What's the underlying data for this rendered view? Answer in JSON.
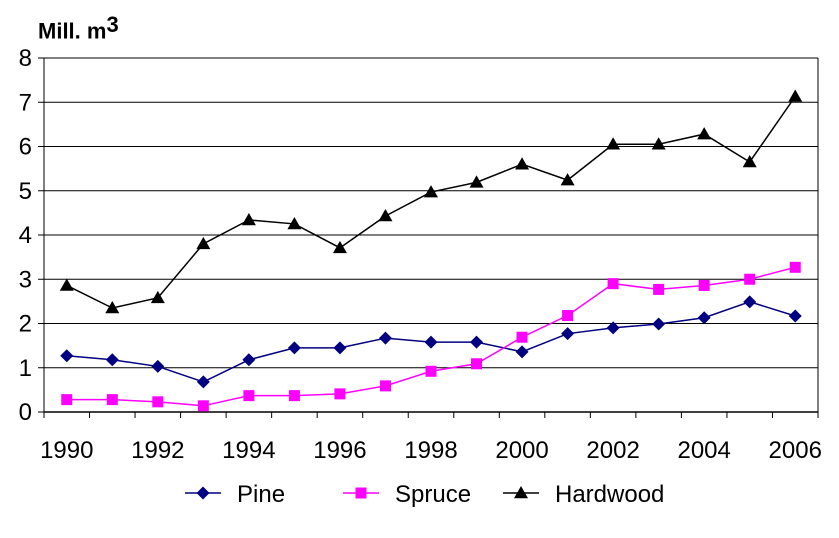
{
  "chart_data": {
    "type": "line",
    "ylabel": "Mill. m",
    "ylabel_superscript": "3",
    "x": [
      1990,
      1991,
      1992,
      1993,
      1994,
      1995,
      1996,
      1997,
      1998,
      1999,
      2000,
      2001,
      2002,
      2003,
      2004,
      2005,
      2006
    ],
    "x_tick_labels": [
      "1990",
      "1992",
      "1994",
      "1996",
      "1998",
      "2000",
      "2002",
      "2004",
      "2006"
    ],
    "y_tick_labels": [
      "0",
      "1",
      "2",
      "3",
      "4",
      "5",
      "6",
      "7",
      "8"
    ],
    "ylim": [
      0,
      8
    ],
    "grid": "horizontal",
    "legend_position": "bottom",
    "series": [
      {
        "name": "Pine",
        "color": "#000080",
        "marker": "diamond",
        "values": [
          1.27,
          1.18,
          1.03,
          0.68,
          1.18,
          1.45,
          1.45,
          1.67,
          1.58,
          1.58,
          1.36,
          1.77,
          1.9,
          1.99,
          2.13,
          2.49,
          2.17
        ]
      },
      {
        "name": "Spruce",
        "color": "#ff00ff",
        "marker": "square",
        "values": [
          0.28,
          0.28,
          0.23,
          0.14,
          0.37,
          0.37,
          0.41,
          0.59,
          0.92,
          1.09,
          1.69,
          2.18,
          2.9,
          2.77,
          2.86,
          3.0,
          3.27
        ]
      },
      {
        "name": "Hardwood",
        "color": "#000000",
        "marker": "triangle",
        "values": [
          2.86,
          2.35,
          2.58,
          3.8,
          4.34,
          4.25,
          3.71,
          4.43,
          4.97,
          5.19,
          5.6,
          5.24,
          6.05,
          6.05,
          6.28,
          5.65,
          7.13
        ]
      }
    ]
  }
}
